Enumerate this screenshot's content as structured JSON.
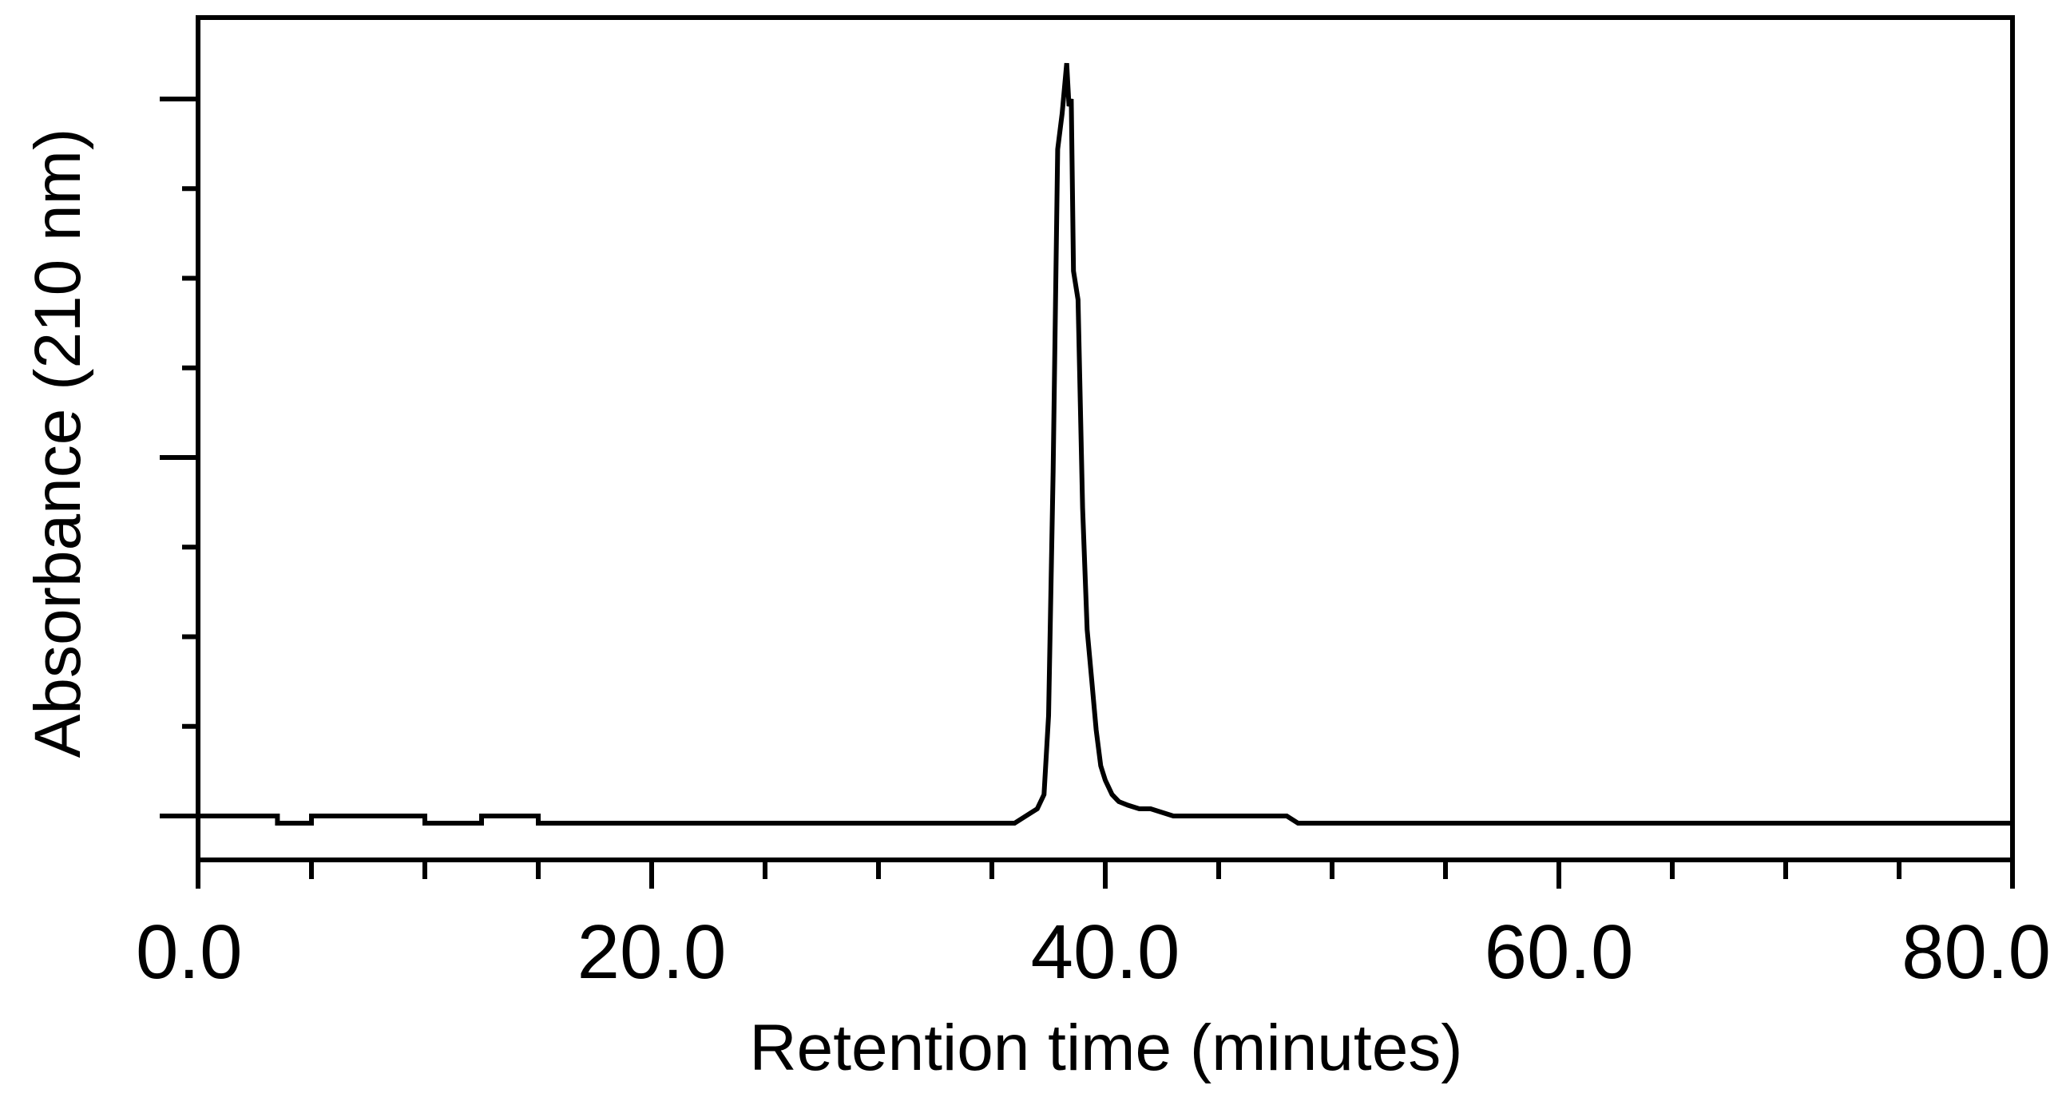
{
  "chart_data": {
    "type": "line",
    "title": "",
    "xlabel": "Retention time (minutes)",
    "ylabel": "Absorbance (210 nm)",
    "xlim": [
      0,
      80
    ],
    "ylim": [
      0,
      1.05
    ],
    "x_ticks": [
      {
        "value": 0,
        "label": "0.0"
      },
      {
        "value": 20,
        "label": "20.0"
      },
      {
        "value": 40,
        "label": "40.0"
      },
      {
        "value": 60,
        "label": "60.0"
      },
      {
        "value": 80,
        "label": "80.0"
      }
    ],
    "x_minor_ticks": [
      5,
      10,
      15,
      25,
      30,
      35,
      45,
      50,
      55,
      65,
      70,
      75
    ],
    "y_major_ticks": [
      0,
      0.5,
      1.0
    ],
    "y_minor_ticks": [
      0.125,
      0.25,
      0.375,
      0.625,
      0.75,
      0.875
    ],
    "grid": false,
    "legend": "none",
    "series": [
      {
        "color": "#000000",
        "x": [
          0,
          3.5,
          3.5,
          5,
          5,
          10,
          10,
          12.5,
          12.5,
          15,
          15,
          36,
          36.5,
          37,
          37.3,
          37.5,
          37.7,
          37.9,
          38.1,
          38.3,
          38.4,
          38.5,
          38.6,
          38.8,
          39,
          39.2,
          39.4,
          39.6,
          39.8,
          40,
          40.3,
          40.6,
          41,
          41.5,
          42,
          43,
          43.5,
          48,
          48.5,
          80
        ],
        "y": [
          0,
          0,
          -0.01,
          -0.01,
          0,
          0,
          -0.01,
          -0.01,
          0,
          0,
          -0.01,
          -0.01,
          0,
          0.01,
          0.03,
          0.14,
          0.48,
          0.93,
          0.98,
          1.05,
          0.99,
          1.0,
          0.76,
          0.72,
          0.43,
          0.26,
          0.19,
          0.12,
          0.07,
          0.05,
          0.03,
          0.02,
          0.015,
          0.01,
          0.01,
          0,
          0,
          0,
          -0.01,
          -0.01
        ]
      }
    ]
  }
}
